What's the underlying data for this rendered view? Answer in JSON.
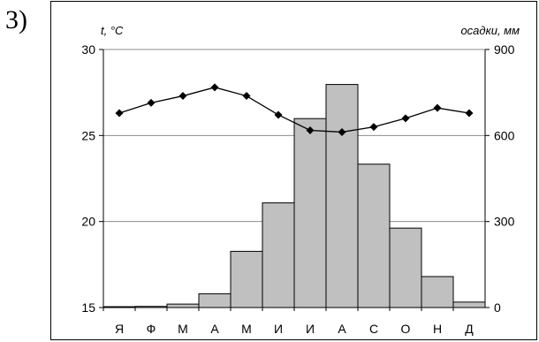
{
  "figure": {
    "marker": "3)"
  },
  "chart_data": {
    "type": "bar+line",
    "categories": [
      "Я",
      "Ф",
      "М",
      "А",
      "М",
      "И",
      "И",
      "А",
      "С",
      "О",
      "Н",
      "Д"
    ],
    "series": [
      {
        "name": "осадки, мм",
        "kind": "bar",
        "axis": "right",
        "values": [
          3,
          4,
          12,
          48,
          196,
          365,
          659,
          778,
          500,
          277,
          108,
          19
        ]
      },
      {
        "name": "t, °C",
        "kind": "line",
        "axis": "left",
        "values": [
          26.3,
          26.9,
          27.3,
          27.8,
          27.3,
          26.2,
          25.3,
          25.2,
          25.5,
          26.0,
          26.6,
          26.3
        ]
      }
    ],
    "left_axis": {
      "label": "t, °C",
      "range": [
        15,
        30
      ],
      "ticks": [
        "15",
        "20",
        "25",
        "30"
      ]
    },
    "right_axis": {
      "label": "осадки, мм",
      "range": [
        0,
        900
      ],
      "ticks": [
        "0",
        "300",
        "600",
        "900"
      ]
    },
    "grid": "horizontal",
    "bar_color": "#c0c0c0",
    "line_color": "#000000"
  }
}
